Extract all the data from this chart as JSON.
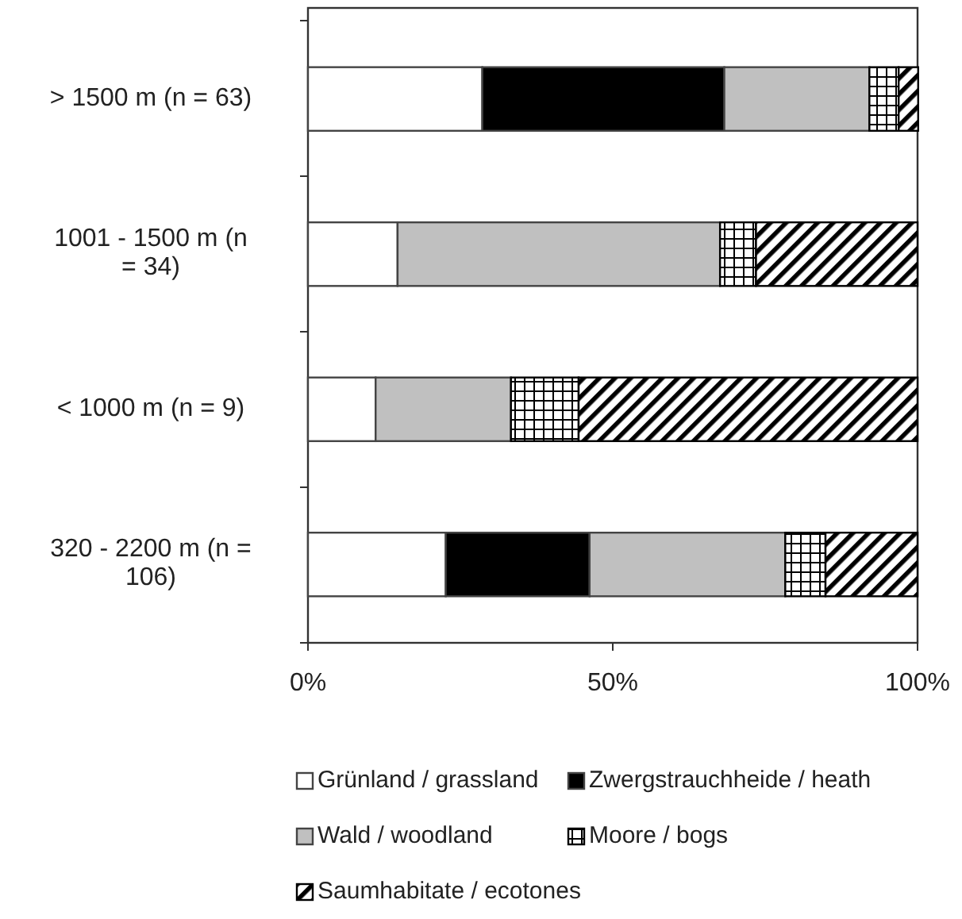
{
  "chart_data": {
    "type": "bar",
    "orientation": "horizontal",
    "stacked": true,
    "categories": [
      "> 1500 m (n = 63)",
      "1001 - 1500 m (n = 34)",
      "< 1000 m (n = 9)",
      "320 - 2200 m (n = 106)"
    ],
    "series": [
      {
        "name": "Grünland / grassland",
        "color": "#ffffff",
        "values": [
          28.6,
          14.7,
          11.1,
          22.6
        ]
      },
      {
        "name": "Zwergstrauchheide / heath",
        "color": "#000000",
        "values": [
          39.7,
          0,
          0,
          23.6
        ]
      },
      {
        "name": "Wald / woodland",
        "color": "#c0c0c0",
        "values": [
          23.8,
          52.9,
          22.2,
          32.1
        ]
      },
      {
        "name": "Moore / bogs",
        "color": "#000000",
        "values": [
          4.8,
          5.9,
          11.1,
          6.6
        ]
      },
      {
        "name": "Saumhabitate / ecotones",
        "color": "#000000",
        "values": [
          3.2,
          26.5,
          55.6,
          15.1
        ]
      }
    ],
    "xlim": [
      0,
      100
    ],
    "xticks": [
      {
        "value": 0,
        "label": "0%"
      },
      {
        "value": 50,
        "label": "50%"
      },
      {
        "value": 100,
        "label": "100%"
      }
    ],
    "grid": false,
    "legend": "bottom"
  }
}
